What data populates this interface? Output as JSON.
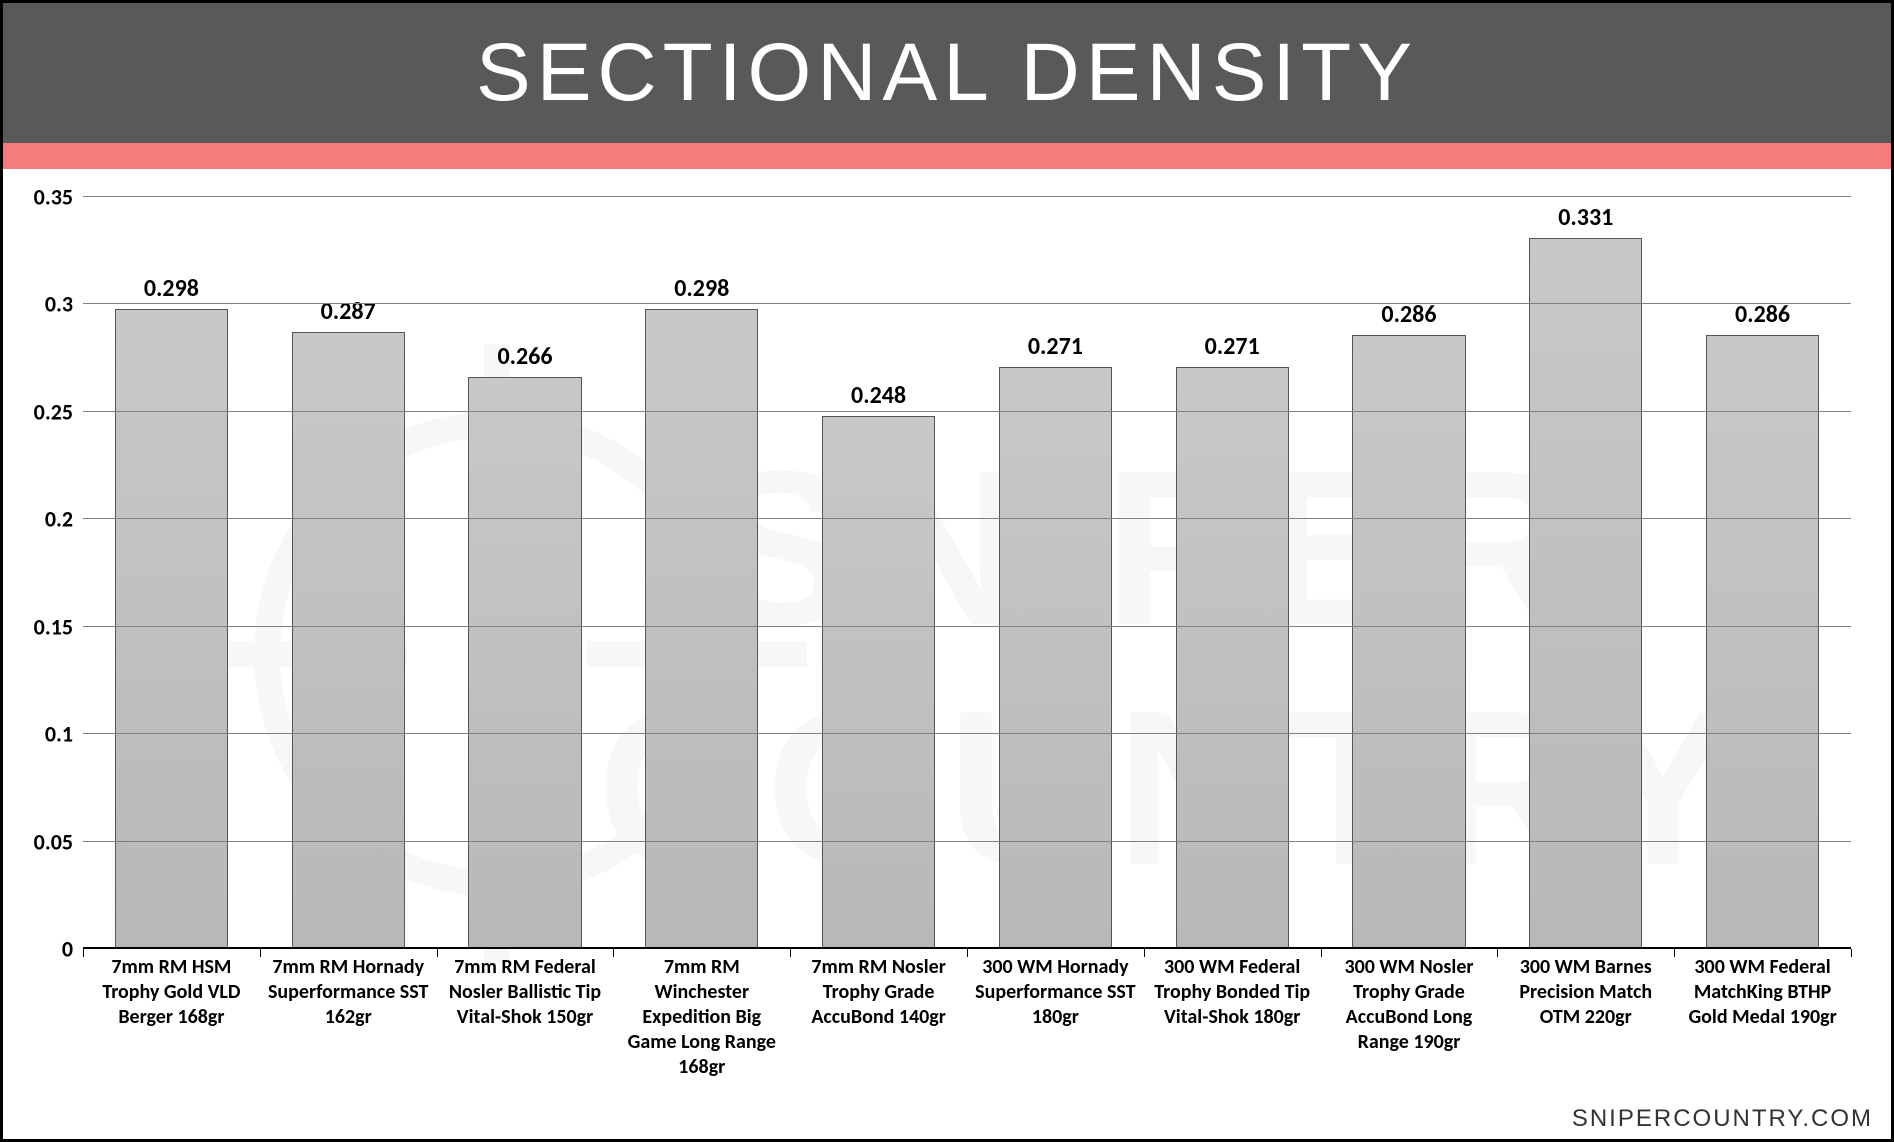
{
  "title": "SECTIONAL DENSITY",
  "attribution": "SNIPERCOUNTRY.COM",
  "watermark_text_top": "SNIPER",
  "watermark_text_bottom": "COUNTRY",
  "colors": {
    "title_bg": "#595959",
    "title_fg": "#ffffff",
    "accent": "#f47c7c",
    "bar_fill_top": "#c8c8c8",
    "bar_fill_bottom": "#b8b8b8",
    "bar_border": "#555555",
    "grid": "#808080",
    "axis": "#000000",
    "background": "#ffffff",
    "text": "#000000",
    "watermark": "#f0f0f0"
  },
  "typography": {
    "title_fontsize": 82,
    "title_letter_spacing": 6,
    "ylabel_fontsize": 22,
    "xlabel_fontsize": 20,
    "value_fontsize": 24,
    "attribution_fontsize": 24
  },
  "chart": {
    "type": "bar",
    "ylim": [
      0,
      0.35
    ],
    "ytick_step": 0.05,
    "yticks": [
      0,
      0.05,
      0.1,
      0.15,
      0.2,
      0.25,
      0.3,
      0.35
    ],
    "bar_width": 0.64,
    "categories": [
      "7mm RM HSM Trophy Gold VLD Berger 168gr",
      "7mm RM Hornady Superformance SST 162gr",
      "7mm RM Federal Nosler Ballistic Tip Vital-Shok 150gr",
      "7mm RM Winchester Expedition Big Game Long Range 168gr",
      "7mm RM Nosler Trophy Grade AccuBond 140gr",
      "300 WM Hornady Superformance SST 180gr",
      "300 WM Federal Trophy Bonded Tip Vital-Shok 180gr",
      "300 WM Nosler Trophy Grade AccuBond Long Range 190gr",
      "300 WM Barnes Precision Match OTM 220gr",
      "300 WM Federal MatchKing BTHP Gold Medal 190gr"
    ],
    "values": [
      0.298,
      0.287,
      0.266,
      0.298,
      0.248,
      0.271,
      0.271,
      0.286,
      0.331,
      0.286
    ],
    "bar_colors": [
      "#bfbfbf",
      "#bfbfbf",
      "#bfbfbf",
      "#bfbfbf",
      "#bfbfbf",
      "#bfbfbf",
      "#bfbfbf",
      "#bfbfbf",
      "#bfbfbf",
      "#bfbfbf"
    ]
  }
}
